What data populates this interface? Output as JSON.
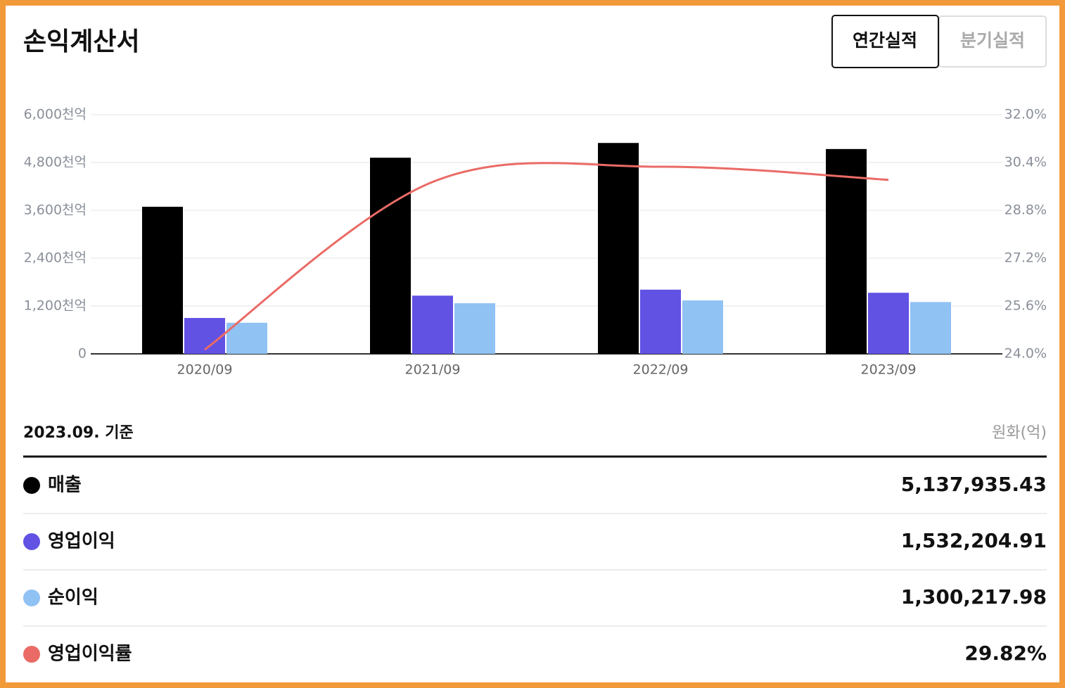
{
  "header": {
    "title": "손익계산서",
    "tabs": [
      "연간실적",
      "분기실적"
    ],
    "active_tab": 0
  },
  "chart_data": {
    "type": "bar",
    "categories": [
      "2020/09",
      "2021/09",
      "2022/09",
      "2023/09"
    ],
    "series": [
      {
        "name": "매출",
        "color": "#000000",
        "values": [
          3690,
          4920,
          5290,
          5138
        ]
      },
      {
        "name": "영업이익",
        "color": "#6152e4",
        "values": [
          900,
          1460,
          1610,
          1532
        ]
      },
      {
        "name": "순이익",
        "color": "#90c2f4",
        "values": [
          780,
          1270,
          1340,
          1300
        ]
      },
      {
        "name": "영업이익률",
        "color": "#ea6b66",
        "type": "line",
        "axis": "y2",
        "values": [
          24.14,
          29.75,
          30.26,
          29.82
        ]
      }
    ],
    "ylim": [
      0,
      6000
    ],
    "yticks": [
      0,
      {
        "value": 1200,
        "label": "1,200천억"
      },
      {
        "value": 2400,
        "label": "2,400천억"
      },
      {
        "value": 3600,
        "label": "3,600천억"
      },
      {
        "value": 4800,
        "label": "4,800천억"
      },
      {
        "value": 6000,
        "label": "6,000천억"
      }
    ],
    "y2lim": [
      24,
      32
    ],
    "y2ticks": [
      {
        "value": 24,
        "label": "24.0%"
      },
      {
        "value": 25.6,
        "label": "25.6%"
      },
      {
        "value": 27.2,
        "label": "27.2%"
      },
      {
        "value": 28.8,
        "label": "28.8%"
      },
      {
        "value": 30.4,
        "label": "30.4%"
      },
      {
        "value": 32,
        "label": "32.0%"
      }
    ],
    "grid": true
  },
  "table": {
    "as_of": "2023.09. 기준",
    "unit": "원화(억)",
    "values": [
      "5,137,935.43",
      "1,532,204.91",
      "1,300,217.98",
      "29.82%"
    ]
  }
}
